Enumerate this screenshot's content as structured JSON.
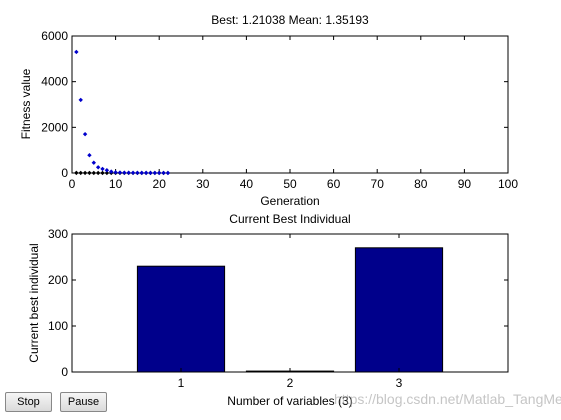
{
  "chart_data": [
    {
      "type": "scatter",
      "title": "Best: 1.21038 Mean: 1.35193",
      "xlabel": "Generation",
      "ylabel": "Fitness value",
      "xlim": [
        0,
        100
      ],
      "ylim": [
        0,
        6000
      ],
      "xticks": [
        "0",
        "10",
        "20",
        "30",
        "40",
        "50",
        "60",
        "70",
        "80",
        "90",
        "100"
      ],
      "yticks": [
        "0",
        "2000",
        "4000",
        "6000"
      ],
      "grid": false,
      "series": [
        {
          "color": "#0000cc",
          "x": [
            1,
            2,
            3,
            4,
            5,
            6,
            7,
            8,
            9,
            10,
            11,
            12,
            13,
            14,
            15,
            16,
            17,
            18,
            19,
            20,
            21,
            22
          ],
          "y": [
            5300,
            3200,
            1700,
            780,
            450,
            250,
            180,
            120,
            60,
            30,
            20,
            15,
            12,
            10,
            8,
            6,
            5,
            5,
            4,
            3,
            3,
            2
          ]
        },
        {
          "color": "#000000",
          "x": [
            1,
            2,
            3,
            4,
            5,
            6,
            7,
            8,
            9,
            10,
            11,
            12,
            13,
            14,
            15,
            16,
            17,
            18,
            19,
            20,
            21,
            22
          ],
          "y": [
            5,
            4,
            3,
            3,
            2,
            2,
            2,
            2,
            1.5,
            1.5,
            1.4,
            1.4,
            1.3,
            1.3,
            1.3,
            1.25,
            1.25,
            1.23,
            1.22,
            1.22,
            1.21,
            1.21
          ]
        }
      ]
    },
    {
      "type": "bar",
      "title": "Current Best Individual",
      "xlabel": "Number of variables (3)",
      "ylabel": "Current best individual",
      "categories": [
        "1",
        "2",
        "3"
      ],
      "values": [
        230,
        2,
        270
      ],
      "ylim": [
        0,
        300
      ],
      "yticks": [
        "0",
        "100",
        "200",
        "300"
      ],
      "bar_color": "#00008b",
      "grid": false
    }
  ],
  "buttons": {
    "stop": "Stop",
    "pause": "Pause"
  },
  "watermark": "https://blog.csdn.net/Matlab_TangMen"
}
